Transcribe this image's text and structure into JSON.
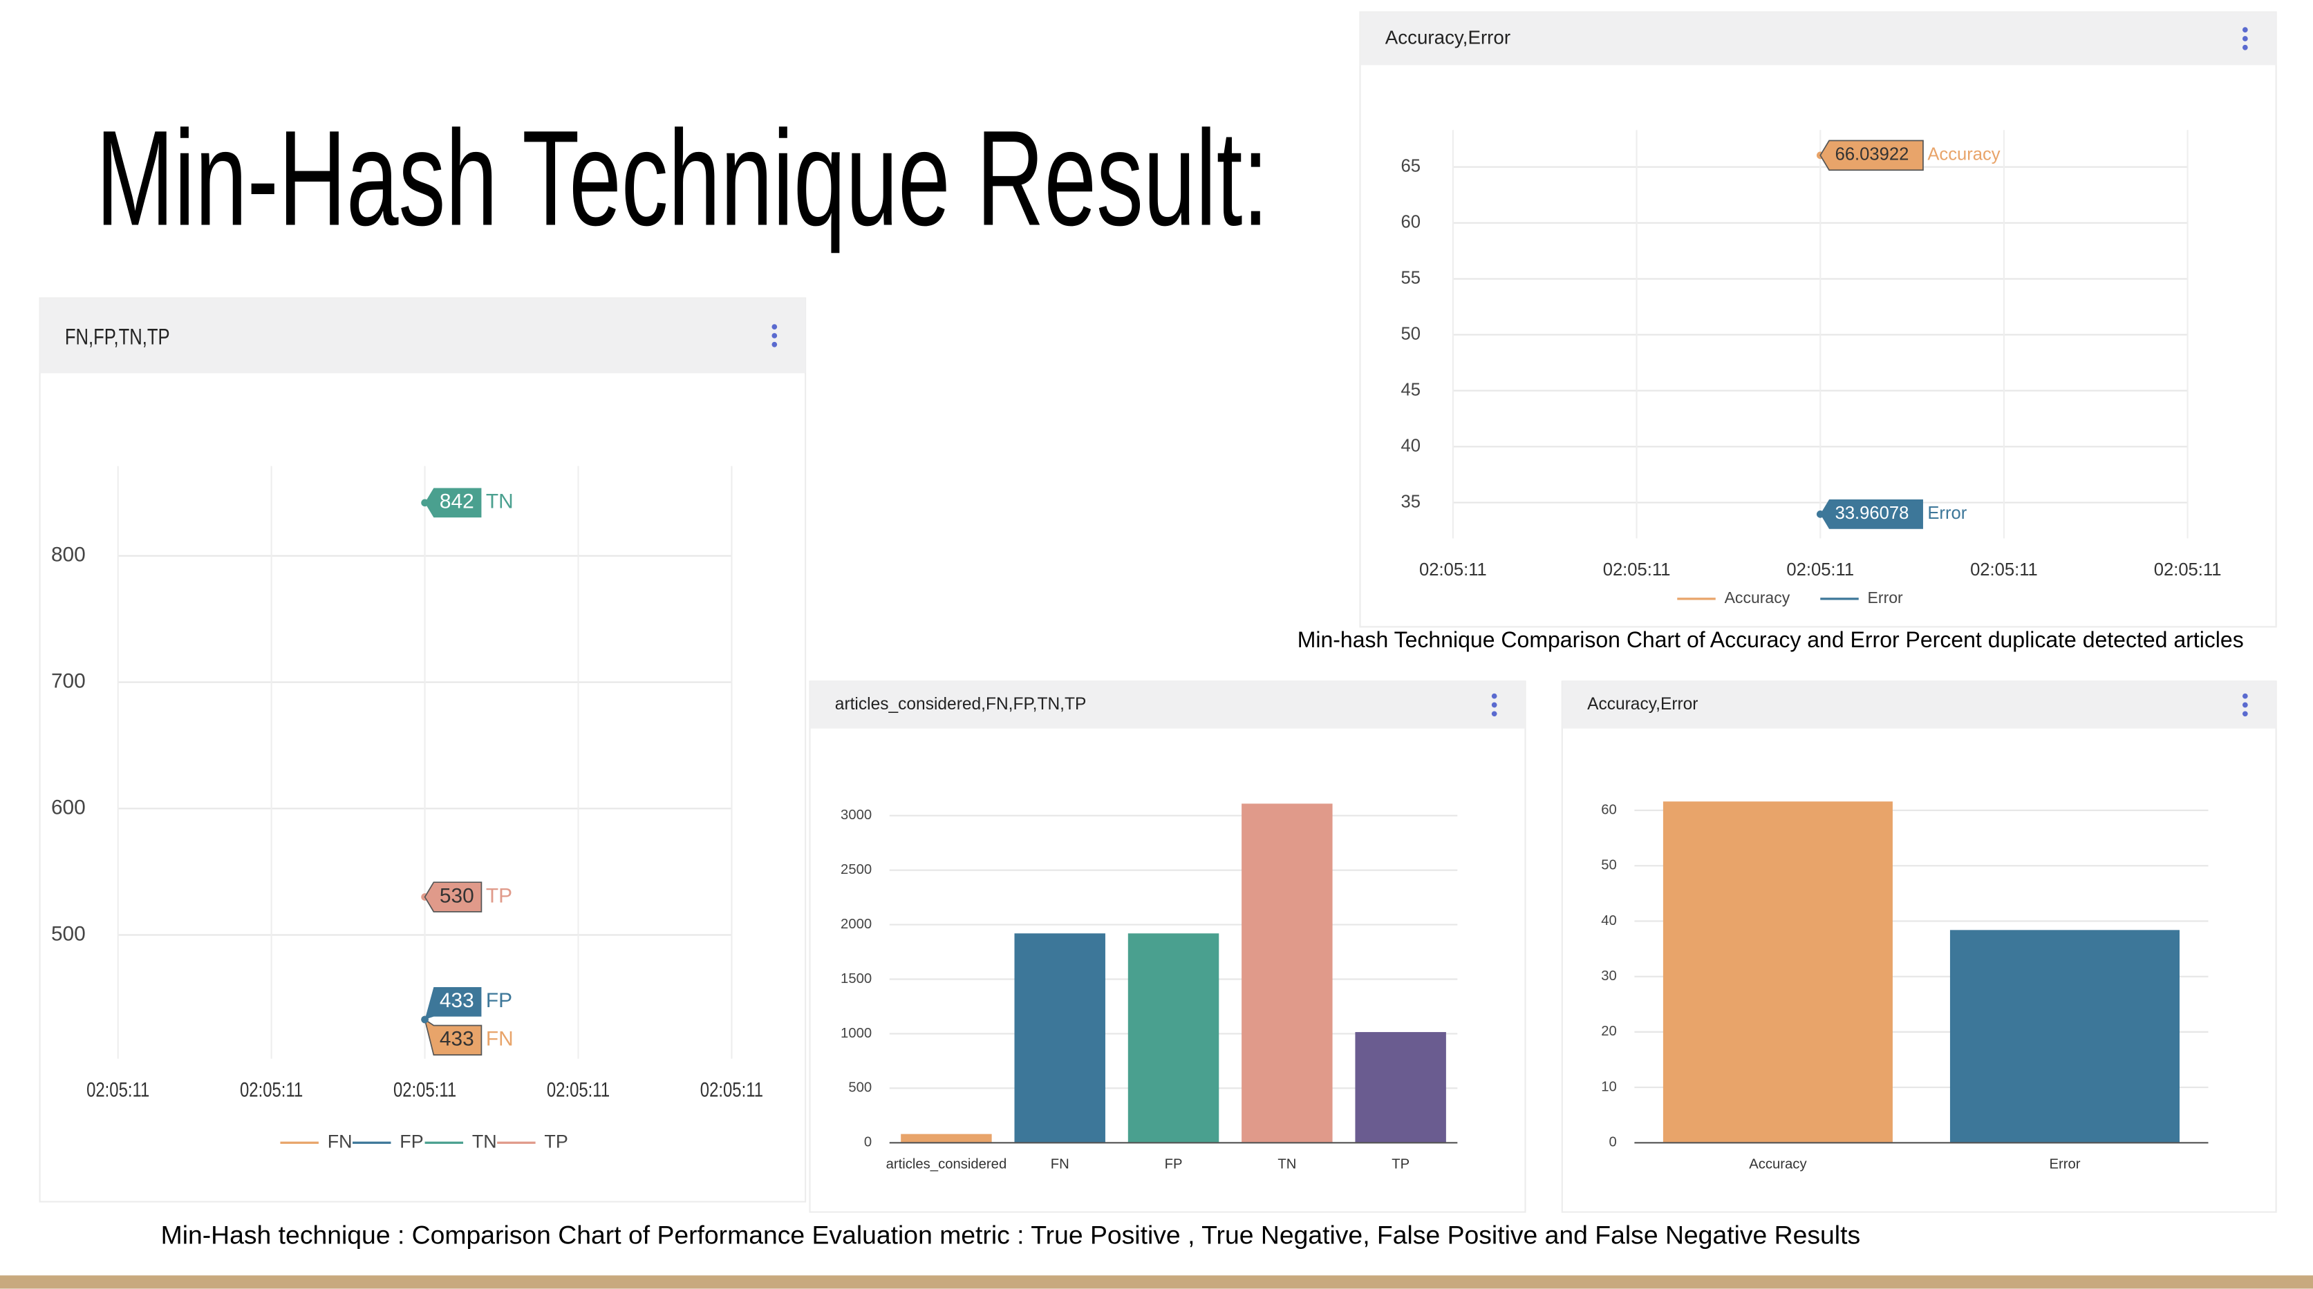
{
  "title": "Min-Hash Technique Result:",
  "captions": [
    "Min-hash Technique Comparison Chart of Accuracy and Error Percent duplicate detected articles",
    "Min-Hash technique : Comparison Chart of Performance Evaluation metric : True Positive , True Negative, False Positive and False Negative Results"
  ],
  "chart_data": [
    {
      "type": "line",
      "title": "FN,FP,TN,TP",
      "x": [
        "02:05:11"
      ],
      "xticks": [
        "02:05:11",
        "02:05:11",
        "02:05:11",
        "02:05:11",
        "02:05:11"
      ],
      "ylim": [
        402,
        871
      ],
      "yticks": [
        500,
        600,
        700,
        800
      ],
      "grid": true,
      "legend": "bottom",
      "series": [
        {
          "name": "FN",
          "color": "#e8a46a",
          "values": [
            433
          ]
        },
        {
          "name": "FP",
          "color": "#3d7799",
          "values": [
            433
          ]
        },
        {
          "name": "TN",
          "color": "#4aa08f",
          "values": [
            842
          ]
        },
        {
          "name": "TP",
          "color": "#e09a8a",
          "values": [
            530
          ]
        }
      ]
    },
    {
      "type": "line",
      "title": "Accuracy,Error",
      "x": [
        "02:05:11"
      ],
      "xticks": [
        "02:05:11",
        "02:05:11",
        "02:05:11",
        "02:05:11",
        "02:05:11"
      ],
      "ylim": [
        31.8,
        68.3
      ],
      "yticks": [
        35,
        40,
        45,
        50,
        55,
        60,
        65
      ],
      "grid": true,
      "legend": "bottom",
      "series": [
        {
          "name": "Accuracy",
          "color": "#e8a46a",
          "values": [
            66.03922
          ]
        },
        {
          "name": "Error",
          "color": "#3d7799",
          "values": [
            33.96078
          ]
        }
      ]
    },
    {
      "type": "bar",
      "title": "articles_considered,FN,FP,TN,TP",
      "categories": [
        "articles_considered",
        "FN",
        "FP",
        "TN",
        "TP"
      ],
      "values": [
        80,
        1920,
        1920,
        3110,
        1015
      ],
      "colors": [
        "#e8a46a",
        "#3d7799",
        "#4aa08f",
        "#e09a8a",
        "#6a5c90"
      ],
      "ylim": [
        0,
        3150
      ],
      "yticks": [
        0,
        500,
        1000,
        1500,
        2000,
        2500,
        3000
      ],
      "grid": true
    },
    {
      "type": "bar",
      "title": "Accuracy,Error",
      "categories": [
        "Accuracy",
        "Error"
      ],
      "values": [
        61.6,
        38.4
      ],
      "colors": [
        "#e8a46a",
        "#3d7799"
      ],
      "ylim": [
        0,
        62
      ],
      "yticks": [
        0,
        10,
        20,
        30,
        40,
        50,
        60
      ],
      "grid": true
    }
  ]
}
